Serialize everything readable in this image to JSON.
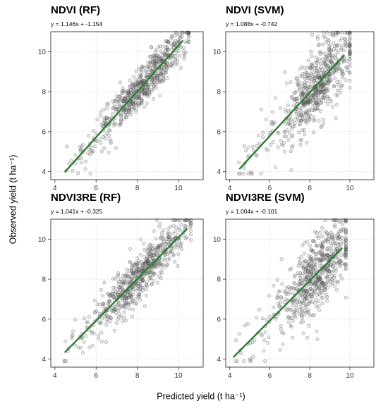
{
  "figure": {
    "xlabel": "Predicted yield (t ha⁻¹)",
    "ylabel": "Observed yield (t ha⁻¹)"
  },
  "chart_data": [
    {
      "type": "scatter",
      "title": "NDVI (RF)",
      "subtitle": "y = 1.146x + -1.154",
      "xlim": [
        3.8,
        11.2
      ],
      "ylim": [
        3.6,
        11.0
      ],
      "xticks": [
        4,
        6,
        8,
        10
      ],
      "yticks": [
        4,
        6,
        8,
        10
      ],
      "grid": true,
      "fit_line": {
        "slope": 1.146,
        "intercept": -1.154,
        "x_range": [
          4.5,
          10.2
        ],
        "color": "#2e7d32"
      },
      "point_cloud": {
        "n": 650,
        "x_center": 8.4,
        "x_spread": 1.1,
        "x_min": 4.4,
        "x_max": 10.5,
        "noise": 0.5
      },
      "point_color": "#555555"
    },
    {
      "type": "scatter",
      "title": "NDVI (SVM)",
      "subtitle": "y = 1.088x + -0.742",
      "xlim": [
        3.8,
        11.2
      ],
      "ylim": [
        3.6,
        11.0
      ],
      "xticks": [
        4,
        6,
        8,
        10
      ],
      "yticks": [
        4,
        6,
        8,
        10
      ],
      "grid": true,
      "fit_line": {
        "slope": 1.088,
        "intercept": -0.742,
        "x_range": [
          4.5,
          9.7
        ],
        "color": "#2e7d32"
      },
      "point_cloud": {
        "n": 650,
        "x_center": 8.5,
        "x_spread": 0.9,
        "x_min": 4.4,
        "x_max": 10.0,
        "noise": 0.9
      },
      "point_color": "#555555"
    },
    {
      "type": "scatter",
      "title": "NDVI3RE (RF)",
      "subtitle": "y = 1.041x + -0.325",
      "xlim": [
        3.8,
        11.2
      ],
      "ylim": [
        3.6,
        11.0
      ],
      "xticks": [
        4,
        6,
        8,
        10
      ],
      "yticks": [
        4,
        6,
        8,
        10
      ],
      "grid": true,
      "fit_line": {
        "slope": 1.041,
        "intercept": -0.325,
        "x_range": [
          4.5,
          10.4
        ],
        "color": "#2e7d32"
      },
      "point_cloud": {
        "n": 650,
        "x_center": 8.3,
        "x_spread": 1.1,
        "x_min": 4.4,
        "x_max": 10.6,
        "noise": 0.6
      },
      "point_color": "#555555"
    },
    {
      "type": "scatter",
      "title": "NDVI3RE (SVM)",
      "subtitle": "y = 1.004x + -0.101",
      "xlim": [
        3.8,
        11.2
      ],
      "ylim": [
        3.6,
        11.0
      ],
      "xticks": [
        4,
        6,
        8,
        10
      ],
      "yticks": [
        4,
        6,
        8,
        10
      ],
      "grid": true,
      "fit_line": {
        "slope": 1.004,
        "intercept": -0.101,
        "x_range": [
          4.2,
          9.6
        ],
        "color": "#2e7d32"
      },
      "point_cloud": {
        "n": 650,
        "x_center": 8.5,
        "x_spread": 0.9,
        "x_min": 4.2,
        "x_max": 9.8,
        "noise": 0.9
      },
      "point_color": "#555555"
    }
  ]
}
